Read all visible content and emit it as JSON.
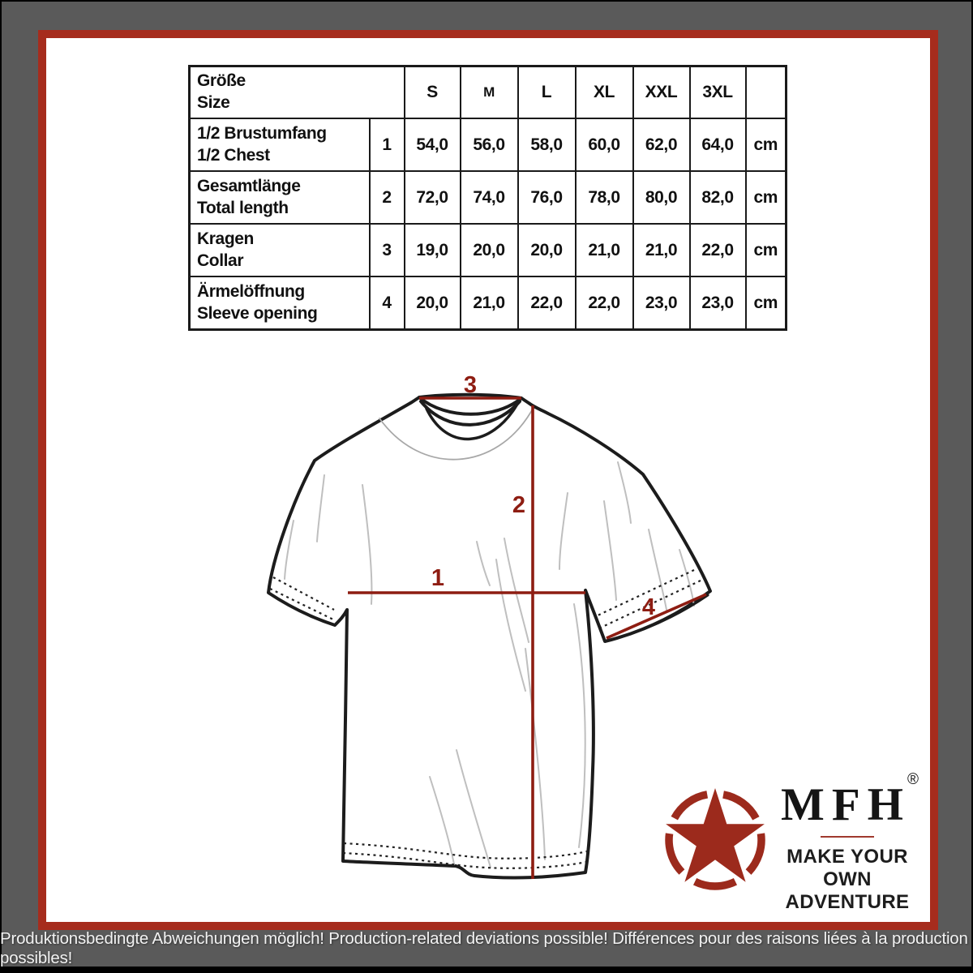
{
  "size_table": {
    "header": {
      "title_de": "Größe",
      "title_en": "Size",
      "sizes": [
        "S",
        "M",
        "L",
        "XL",
        "XXL",
        "3XL"
      ],
      "unit_header": ""
    },
    "rows": [
      {
        "label_de": "1/2 Brustumfang",
        "label_en": "1/2 Chest",
        "ref": "1",
        "values": [
          "54,0",
          "56,0",
          "58,0",
          "60,0",
          "62,0",
          "64,0"
        ],
        "unit": "cm"
      },
      {
        "label_de": "Gesamtlänge",
        "label_en": "Total length",
        "ref": "2",
        "values": [
          "72,0",
          "74,0",
          "76,0",
          "78,0",
          "80,0",
          "82,0"
        ],
        "unit": "cm"
      },
      {
        "label_de": "Kragen",
        "label_en": "Collar",
        "ref": "3",
        "values": [
          "19,0",
          "20,0",
          "20,0",
          "21,0",
          "21,0",
          "22,0"
        ],
        "unit": "cm"
      },
      {
        "label_de": "Ärmelöffnung",
        "label_en": "Sleeve opening",
        "ref": "4",
        "values": [
          "20,0",
          "21,0",
          "22,0",
          "22,0",
          "23,0",
          "23,0"
        ],
        "unit": "cm"
      }
    ]
  },
  "diagram": {
    "labels": {
      "chest": "1",
      "length": "2",
      "collar": "3",
      "sleeve": "4"
    }
  },
  "logo": {
    "brand": "MFH",
    "registered": "®",
    "tagline_line1": "MAKE YOUR OWN",
    "tagline_line2": "ADVENTURE"
  },
  "frame": {
    "disclaimer": "Produktionsbedingte Abweichungen möglich! Production-related deviations possible! Différences pour des raisons liées à la production possibles!"
  },
  "colors": {
    "frame_gray": "#5a5a5a",
    "border_red": "#a62c1d",
    "measure_red": "#8e1d12",
    "star_red": "#9c2a1c",
    "ink": "#1a1a1a"
  }
}
